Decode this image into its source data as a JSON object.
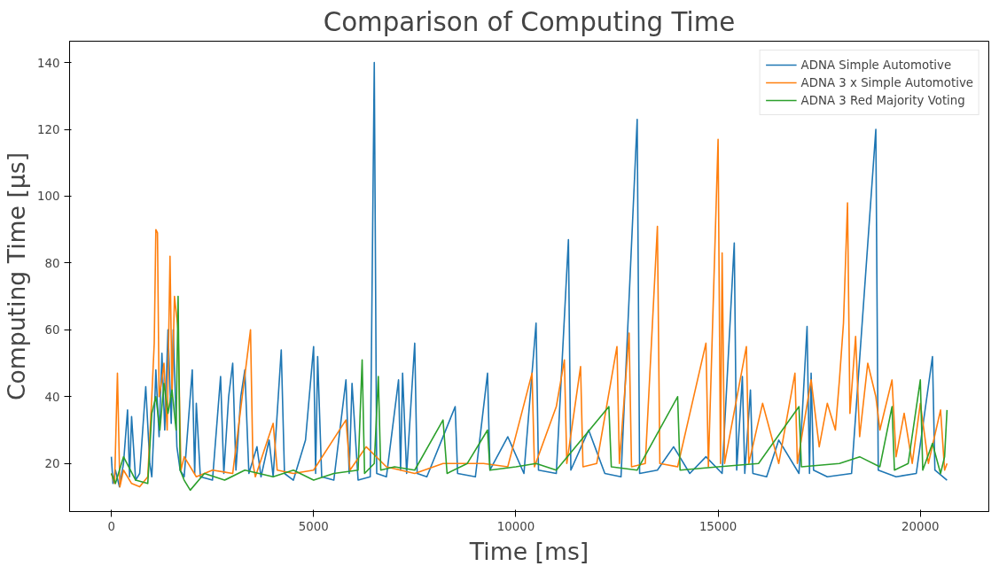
{
  "chart_data": {
    "type": "line",
    "title": "Comparison of Computing Time",
    "xlabel": "Time [ms]",
    "ylabel": "Computing Time [μs]",
    "xlim": [
      -1033,
      21693
    ],
    "ylim": [
      5.6,
      146.4
    ],
    "xticks": [
      0,
      5000,
      10000,
      15000,
      20000
    ],
    "yticks": [
      20,
      40,
      60,
      80,
      100,
      120,
      140
    ],
    "grid": false,
    "legend": "top right",
    "line_style": "solid",
    "marker": "none",
    "series": [
      {
        "name": "ADNA Simple Automotive",
        "color": "#1f77b4",
        "x": [
          0,
          40,
          100,
          200,
          300,
          400,
          450,
          500,
          600,
          700,
          850,
          950,
          1000,
          1050,
          1100,
          1180,
          1250,
          1320,
          1400,
          1480,
          1530,
          1620,
          1700,
          1800,
          2000,
          2060,
          2100,
          2200,
          2500,
          2700,
          2780,
          2900,
          3000,
          3080,
          3200,
          3300,
          3400,
          3600,
          3700,
          3900,
          4000,
          4200,
          4280,
          4500,
          4800,
          5000,
          5050,
          5100,
          5200,
          5500,
          5800,
          5880,
          5950,
          6100,
          6400,
          6500,
          6560,
          6800,
          7100,
          7150,
          7200,
          7300,
          7500,
          7560,
          7800,
          8100,
          8500,
          8560,
          9000,
          9300,
          9360,
          9800,
          10200,
          10500,
          10560,
          11000,
          11300,
          11360,
          11800,
          12200,
          12600,
          13000,
          13060,
          13500,
          13900,
          14300,
          14700,
          15100,
          15400,
          15460,
          15600,
          15660,
          15800,
          15860,
          16200,
          16500,
          17000,
          17200,
          17260,
          17300,
          17360,
          17700,
          18300,
          18900,
          18960,
          19400,
          19900,
          20300,
          20360,
          20660
        ],
        "values": [
          22,
          14,
          18,
          13,
          20,
          36,
          16,
          34,
          15,
          17,
          43,
          20,
          16,
          30,
          48,
          28,
          53,
          30,
          60,
          32,
          60,
          25,
          18,
          16,
          48,
          17,
          38,
          16,
          15,
          46,
          17,
          40,
          50,
          18,
          40,
          48,
          17,
          25,
          16,
          27,
          16,
          54,
          17,
          15,
          27,
          55,
          17,
          52,
          16,
          15,
          45,
          17,
          44,
          15,
          16,
          140,
          17,
          16,
          45,
          18,
          47,
          17,
          56,
          17,
          16,
          25,
          37,
          17,
          16,
          47,
          18,
          28,
          17,
          62,
          18,
          17,
          87,
          18,
          30,
          17,
          16,
          123,
          17,
          18,
          25,
          17,
          22,
          17,
          86,
          18,
          46,
          17,
          42,
          17,
          16,
          27,
          17,
          61,
          17,
          47,
          18,
          16,
          17,
          120,
          18,
          16,
          17,
          52,
          18,
          15
        ]
      },
      {
        "name": "ADNA 3 x Simple Automotive",
        "color": "#ff7f0e",
        "x": [
          0,
          80,
          150,
          210,
          300,
          500,
          700,
          900,
          1000,
          1060,
          1100,
          1140,
          1180,
          1250,
          1300,
          1380,
          1450,
          1500,
          1560,
          1650,
          1720,
          1800,
          2100,
          2500,
          3000,
          3440,
          3500,
          3560,
          4000,
          4100,
          4500,
          5000,
          5800,
          5900,
          6300,
          6800,
          7500,
          8200,
          9200,
          9800,
          10400,
          10460,
          11000,
          11200,
          11260,
          11600,
          11660,
          12000,
          12500,
          12560,
          12800,
          12860,
          13200,
          13500,
          13560,
          14000,
          14700,
          14760,
          15000,
          15060,
          15100,
          15160,
          15700,
          15760,
          16100,
          16500,
          16900,
          16960,
          17300,
          17500,
          17700,
          17900,
          18000,
          18100,
          18200,
          18260,
          18400,
          18500,
          18700,
          18900,
          19000,
          19300,
          19400,
          19600,
          19800,
          20000,
          20200,
          20500,
          20600,
          20660
        ],
        "values": [
          17,
          14,
          47,
          13,
          18,
          14,
          13,
          16,
          40,
          56,
          90,
          89,
          40,
          45,
          50,
          30,
          82,
          40,
          70,
          60,
          18,
          22,
          16,
          18,
          17,
          60,
          20,
          16,
          32,
          18,
          17,
          18,
          33,
          18,
          25,
          19,
          17,
          20,
          20,
          19,
          47,
          19,
          37,
          51,
          20,
          49,
          19,
          20,
          55,
          20,
          59,
          19,
          20,
          91,
          20,
          19,
          56,
          19,
          117,
          20,
          83,
          20,
          55,
          20,
          38,
          20,
          47,
          20,
          45,
          25,
          38,
          30,
          45,
          62,
          98,
          35,
          58,
          28,
          50,
          40,
          30,
          45,
          22,
          35,
          20,
          38,
          20,
          36,
          18,
          20
        ]
      },
      {
        "name": "ADNA 3 Red Majority Voting",
        "color": "#2ca02c",
        "x": [
          0,
          100,
          300,
          600,
          900,
          1000,
          1100,
          1200,
          1300,
          1400,
          1500,
          1600,
          1650,
          1700,
          1800,
          1950,
          2300,
          2800,
          3300,
          4000,
          4500,
          5000,
          5500,
          6100,
          6200,
          6260,
          6500,
          6600,
          6660,
          7000,
          7500,
          8200,
          8300,
          8800,
          9300,
          9360,
          10000,
          10500,
          11000,
          12300,
          12360,
          13000,
          14000,
          14060,
          15000,
          16000,
          17000,
          17060,
          18000,
          18500,
          19000,
          19300,
          19360,
          19700,
          20000,
          20060,
          20300,
          20500,
          20600,
          20660
        ],
        "values": [
          17,
          14,
          22,
          15,
          14,
          35,
          40,
          30,
          44,
          35,
          42,
          30,
          70,
          18,
          15,
          12,
          17,
          15,
          18,
          16,
          18,
          15,
          17,
          18,
          51,
          17,
          20,
          46,
          18,
          19,
          18,
          33,
          17,
          20,
          30,
          18,
          19,
          20,
          18,
          37,
          19,
          18,
          40,
          18,
          19,
          20,
          37,
          19,
          20,
          22,
          19,
          37,
          18,
          20,
          45,
          18,
          26,
          17,
          22,
          36
        ]
      }
    ]
  }
}
